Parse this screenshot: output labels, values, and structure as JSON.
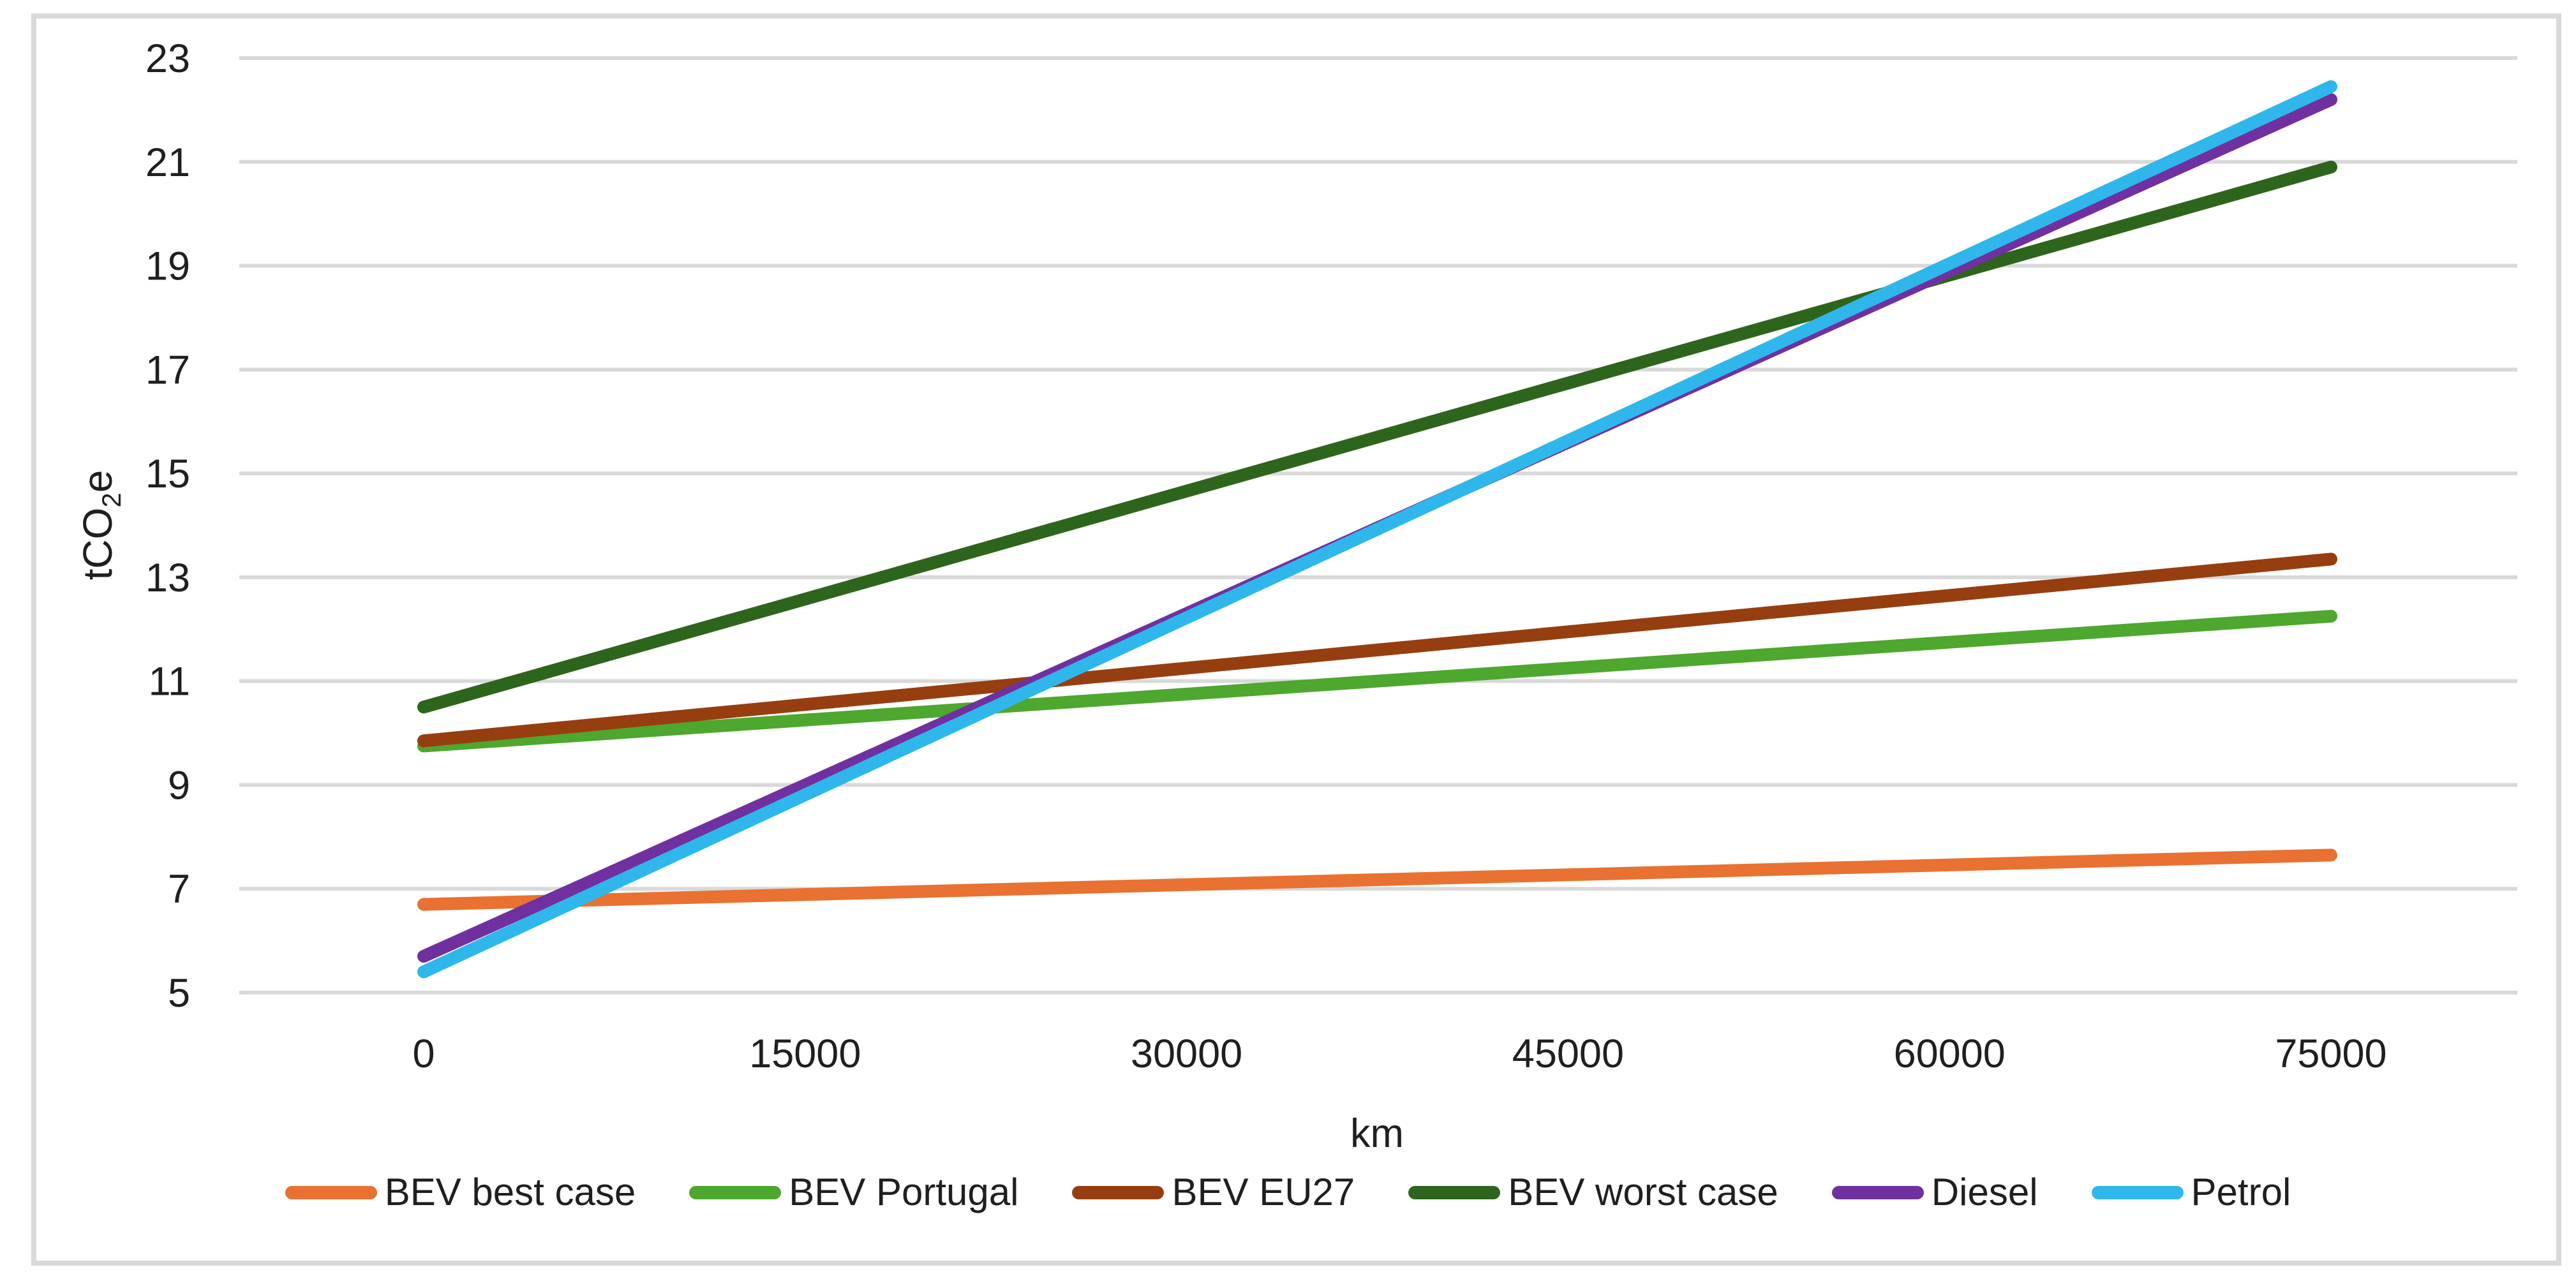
{
  "chart_data": {
    "type": "line",
    "title": "",
    "xlabel": "km",
    "ylabel": "tCO2e",
    "ylabel_parts": {
      "pre": "tCO",
      "sub": "2",
      "post": "e"
    },
    "x": [
      0,
      75000
    ],
    "x_ticks": [
      0,
      15000,
      30000,
      45000,
      60000,
      75000
    ],
    "y_ticks": [
      5,
      7,
      9,
      11,
      13,
      15,
      17,
      19,
      21,
      23
    ],
    "xlim": [
      0,
      75000
    ],
    "ylim": [
      5,
      23
    ],
    "grid": "horizontal",
    "legend_position": "bottom",
    "series": [
      {
        "name": "BEV best case",
        "color": "#E97132",
        "values": [
          6.7,
          7.65
        ]
      },
      {
        "name": "BEV Portugal",
        "color": "#4EA72E",
        "values": [
          9.75,
          12.25
        ]
      },
      {
        "name": "BEV EU27",
        "color": "#963E10",
        "values": [
          9.85,
          13.35
        ]
      },
      {
        "name": "BEV worst case",
        "color": "#2E651C",
        "values": [
          10.5,
          20.9
        ]
      },
      {
        "name": "Diesel",
        "color": "#7030A0",
        "values": [
          5.7,
          22.2
        ]
      },
      {
        "name": "Petrol",
        "color": "#2FB7EC",
        "values": [
          5.4,
          22.45
        ]
      }
    ],
    "colors": {
      "gridline": "#D9D9D9",
      "frame_border": "#D9D9D9",
      "text": "#1F1F1F",
      "background": "#FFFFFF"
    }
  }
}
